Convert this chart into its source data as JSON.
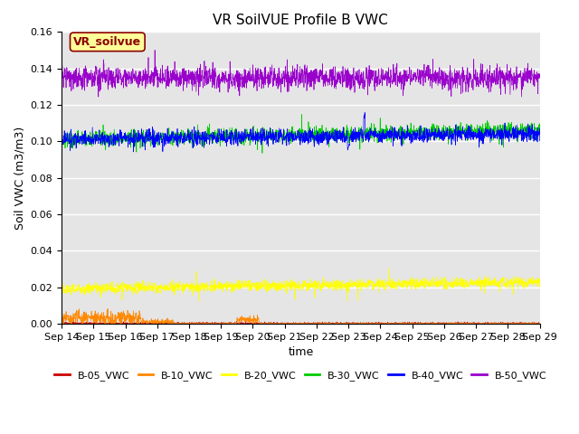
{
  "title": "VR SoilVUE Profile B VWC",
  "xlabel": "time",
  "ylabel": "Soil VWC (m3/m3)",
  "ylim": [
    0,
    0.16
  ],
  "xlim_days": [
    0,
    15
  ],
  "x_tick_labels": [
    "Sep 14",
    "Sep 15",
    "Sep 16",
    "Sep 17",
    "Sep 18",
    "Sep 19",
    "Sep 20",
    "Sep 21",
    "Sep 22",
    "Sep 23",
    "Sep 24",
    "Sep 25",
    "Sep 26",
    "Sep 27",
    "Sep 28",
    "Sep 29"
  ],
  "series_names": [
    "B-05_VWC",
    "B-10_VWC",
    "B-20_VWC",
    "B-30_VWC",
    "B-40_VWC",
    "B-50_VWC"
  ],
  "series_colors": [
    "#cc0000",
    "#ff8800",
    "#ffff00",
    "#00cc00",
    "#0000ff",
    "#9900cc"
  ],
  "annotation_text": "VR_soilvue",
  "annotation_color": "#8b0000",
  "annotation_bg": "#ffff99",
  "annotation_border": "#8b0000",
  "bg_color": "#e5e5e5",
  "grid_color": "white",
  "n_points": 2000,
  "title_fontsize": 11,
  "label_fontsize": 9,
  "tick_fontsize": 8,
  "legend_fontsize": 8
}
